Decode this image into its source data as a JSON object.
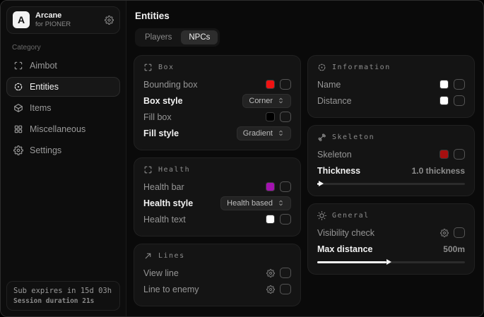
{
  "app": {
    "name": "Arcane",
    "subtitle": "for PIONER",
    "logo_letter": "A"
  },
  "sidebar": {
    "category_label": "Category",
    "items": [
      {
        "label": "Aimbot",
        "icon": "viewfinder-icon",
        "active": false
      },
      {
        "label": "Entities",
        "icon": "radar-icon",
        "active": true
      },
      {
        "label": "Items",
        "icon": "cube-icon",
        "active": false
      },
      {
        "label": "Miscellaneous",
        "icon": "grid-icon",
        "active": false
      },
      {
        "label": "Settings",
        "icon": "gear-icon",
        "active": false
      }
    ],
    "footer": {
      "line1": "Sub expires in 15d 03h",
      "line2": "Session duration 21s"
    }
  },
  "main": {
    "title": "Entities",
    "tabs": [
      {
        "label": "Players",
        "active": false
      },
      {
        "label": "NPCs",
        "active": true
      }
    ],
    "columns": [
      {
        "cards": [
          {
            "title": "Box",
            "icon": "crop-corners-icon",
            "rows": [
              {
                "label": "Bounding box",
                "control": "color-checkbox",
                "swatch": "#f01212",
                "checked": false
              },
              {
                "label": "Box style",
                "emphasis": true,
                "control": "dropdown",
                "value": "Corner"
              },
              {
                "label": "Fill box",
                "control": "color-checkbox",
                "swatch": "#000000",
                "checked": false
              },
              {
                "label": "Fill style",
                "emphasis": true,
                "control": "dropdown",
                "value": "Gradient"
              }
            ]
          },
          {
            "title": "Health",
            "icon": "crop-corners-icon",
            "rows": [
              {
                "label": "Health bar",
                "control": "color-checkbox",
                "swatch": "#a312b0",
                "checked": false
              },
              {
                "label": "Health style",
                "emphasis": true,
                "control": "dropdown",
                "value": "Health based"
              },
              {
                "label": "Health text",
                "control": "color-checkbox",
                "swatch": "#ffffff",
                "checked": false
              }
            ]
          },
          {
            "title": "Lines",
            "icon": "diagonal-line-icon",
            "rows": [
              {
                "label": "View line",
                "control": "gear-checkbox",
                "checked": false
              },
              {
                "label": "Line to enemy",
                "control": "gear-checkbox",
                "checked": false
              }
            ]
          }
        ]
      },
      {
        "cards": [
          {
            "title": "Information",
            "icon": "radar-icon",
            "rows": [
              {
                "label": "Name",
                "control": "color-checkbox",
                "swatch": "#ffffff",
                "checked": false
              },
              {
                "label": "Distance",
                "control": "color-checkbox",
                "swatch": "#ffffff",
                "checked": false
              }
            ]
          },
          {
            "title": "Skeleton",
            "icon": "bone-icon",
            "rows": [
              {
                "label": "Skeleton",
                "control": "color-checkbox",
                "swatch": "#a50f0f",
                "checked": false
              },
              {
                "label": "Thickness",
                "emphasis": true,
                "control": "slider",
                "value": "1.0 thickness",
                "fill_percent": 1
              }
            ]
          },
          {
            "title": "General",
            "icon": "sun-icon",
            "rows": [
              {
                "label": "Visibility check",
                "control": "gear-checkbox",
                "checked": false
              },
              {
                "label": "Max distance",
                "emphasis": true,
                "control": "slider",
                "value": "500m",
                "fill_percent": 47
              }
            ]
          }
        ]
      }
    ]
  }
}
